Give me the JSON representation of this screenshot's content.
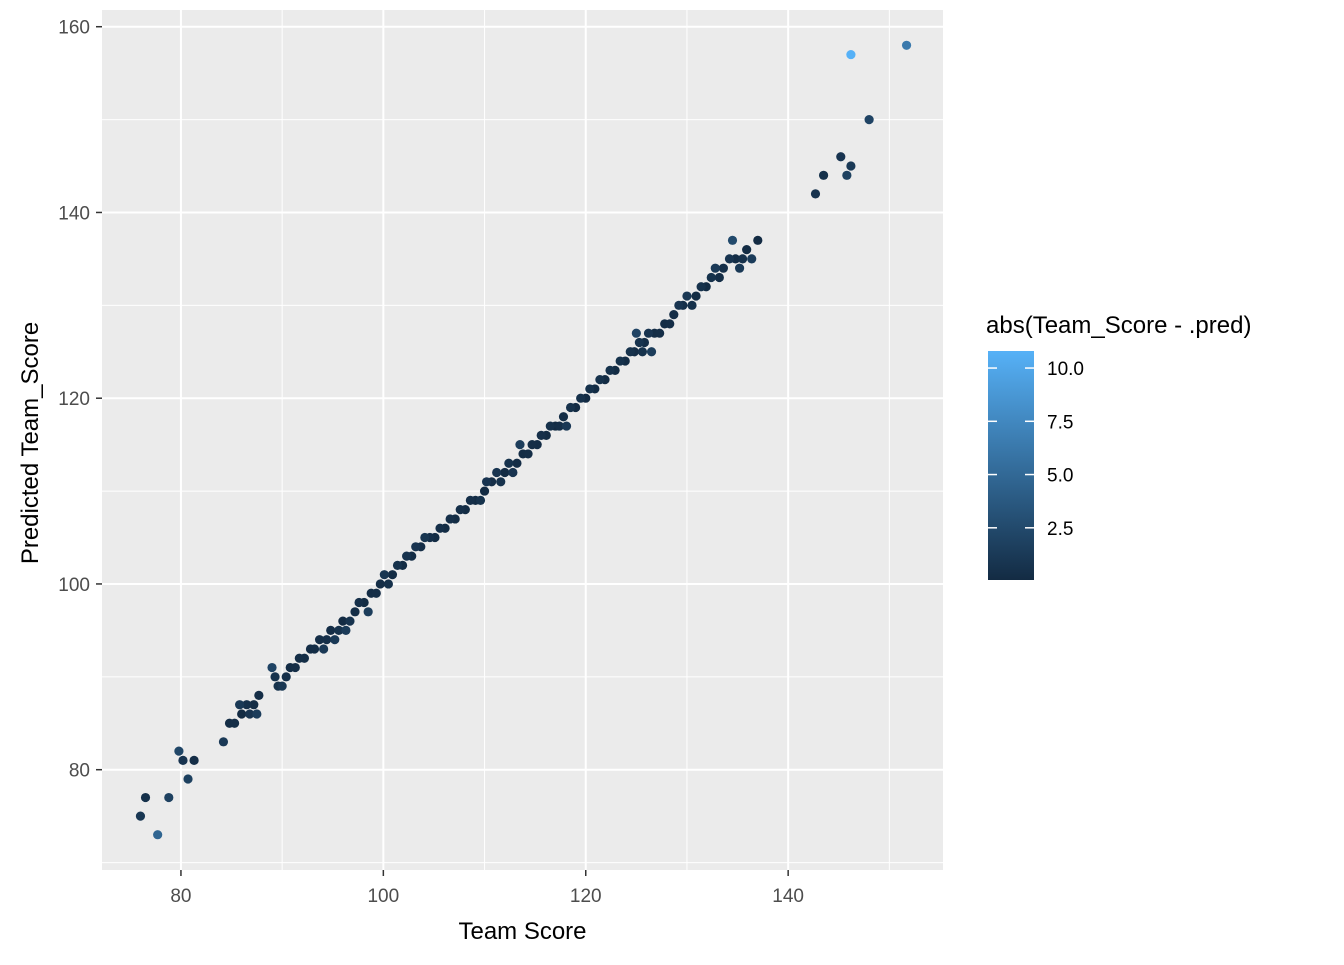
{
  "chart_data": {
    "type": "scatter",
    "title": "",
    "xlabel": "Team Score",
    "ylabel": "Predicted Team_Score",
    "xlim": [
      72.2,
      155.3
    ],
    "ylim": [
      69.2,
      161.8
    ],
    "x_ticks": [
      80,
      100,
      120,
      140
    ],
    "y_ticks": [
      80,
      100,
      120,
      140,
      160
    ],
    "x_tick_labels": [
      "80",
      "100",
      "120",
      "140"
    ],
    "y_tick_labels": [
      "80",
      "100",
      "120",
      "140",
      "160"
    ],
    "grid": true,
    "background": "#EBEBEB",
    "legend": {
      "title": "abs(Team_Score - .pred)",
      "placement": "right",
      "breaks": [
        10.0,
        7.5,
        5.0,
        2.5
      ],
      "break_labels": [
        "10.0",
        "7.5",
        "5.0",
        "2.5"
      ],
      "min": 0.05,
      "max": 10.8,
      "low_color": "#132B43",
      "high_color": "#56B1F7"
    },
    "series": [
      {
        "points": [
          {
            "x": 76.0,
            "y": 75,
            "err": 1.0
          },
          {
            "x": 76.5,
            "y": 77,
            "err": 0.5
          },
          {
            "x": 77.7,
            "y": 73,
            "err": 4.7
          },
          {
            "x": 78.8,
            "y": 77,
            "err": 1.8
          },
          {
            "x": 79.8,
            "y": 82,
            "err": 2.2
          },
          {
            "x": 80.2,
            "y": 81,
            "err": 0.8
          },
          {
            "x": 80.7,
            "y": 79,
            "err": 1.7
          },
          {
            "x": 81.3,
            "y": 81,
            "err": 0.3
          },
          {
            "x": 84.2,
            "y": 83,
            "err": 1.2
          },
          {
            "x": 84.8,
            "y": 85,
            "err": 0.2
          },
          {
            "x": 85.3,
            "y": 85,
            "err": 0.3
          },
          {
            "x": 85.8,
            "y": 87,
            "err": 1.2
          },
          {
            "x": 86.0,
            "y": 86,
            "err": 0.0
          },
          {
            "x": 86.5,
            "y": 87,
            "err": 0.5
          },
          {
            "x": 86.8,
            "y": 86,
            "err": 0.8
          },
          {
            "x": 87.2,
            "y": 87,
            "err": 0.2
          },
          {
            "x": 87.5,
            "y": 86,
            "err": 1.5
          },
          {
            "x": 87.7,
            "y": 88,
            "err": 0.3
          },
          {
            "x": 89.0,
            "y": 91,
            "err": 2.0
          },
          {
            "x": 89.3,
            "y": 90,
            "err": 0.7
          },
          {
            "x": 89.6,
            "y": 89,
            "err": 0.6
          },
          {
            "x": 90.0,
            "y": 89,
            "err": 1.0
          },
          {
            "x": 90.4,
            "y": 90,
            "err": 0.4
          },
          {
            "x": 90.8,
            "y": 91,
            "err": 0.2
          },
          {
            "x": 91.3,
            "y": 91,
            "err": 0.3
          },
          {
            "x": 91.7,
            "y": 92,
            "err": 0.3
          },
          {
            "x": 92.2,
            "y": 92,
            "err": 0.2
          },
          {
            "x": 92.8,
            "y": 93,
            "err": 0.2
          },
          {
            "x": 93.2,
            "y": 93,
            "err": 0.2
          },
          {
            "x": 93.7,
            "y": 94,
            "err": 0.3
          },
          {
            "x": 94.1,
            "y": 93,
            "err": 1.1
          },
          {
            "x": 94.4,
            "y": 94,
            "err": 0.4
          },
          {
            "x": 94.8,
            "y": 95,
            "err": 0.2
          },
          {
            "x": 95.2,
            "y": 94,
            "err": 1.2
          },
          {
            "x": 95.6,
            "y": 95,
            "err": 0.6
          },
          {
            "x": 96.0,
            "y": 96,
            "err": 0.0
          },
          {
            "x": 96.3,
            "y": 95,
            "err": 1.3
          },
          {
            "x": 96.7,
            "y": 96,
            "err": 0.7
          },
          {
            "x": 97.2,
            "y": 97,
            "err": 0.2
          },
          {
            "x": 97.6,
            "y": 98,
            "err": 0.4
          },
          {
            "x": 98.1,
            "y": 98,
            "err": 0.1
          },
          {
            "x": 98.5,
            "y": 97,
            "err": 1.5
          },
          {
            "x": 98.8,
            "y": 99,
            "err": 0.2
          },
          {
            "x": 99.3,
            "y": 99,
            "err": 0.3
          },
          {
            "x": 99.7,
            "y": 100,
            "err": 0.3
          },
          {
            "x": 100.1,
            "y": 101,
            "err": 0.9
          },
          {
            "x": 100.5,
            "y": 100,
            "err": 0.5
          },
          {
            "x": 100.9,
            "y": 101,
            "err": 0.1
          },
          {
            "x": 101.4,
            "y": 102,
            "err": 0.6
          },
          {
            "x": 101.9,
            "y": 102,
            "err": 0.1
          },
          {
            "x": 102.3,
            "y": 103,
            "err": 0.7
          },
          {
            "x": 102.8,
            "y": 103,
            "err": 0.2
          },
          {
            "x": 103.2,
            "y": 104,
            "err": 0.8
          },
          {
            "x": 103.7,
            "y": 104,
            "err": 0.3
          },
          {
            "x": 104.1,
            "y": 105,
            "err": 0.9
          },
          {
            "x": 104.6,
            "y": 105,
            "err": 0.4
          },
          {
            "x": 105.1,
            "y": 105,
            "err": 0.1
          },
          {
            "x": 105.6,
            "y": 106,
            "err": 0.4
          },
          {
            "x": 106.1,
            "y": 106,
            "err": 0.1
          },
          {
            "x": 106.6,
            "y": 107,
            "err": 0.4
          },
          {
            "x": 107.1,
            "y": 107,
            "err": 0.1
          },
          {
            "x": 107.6,
            "y": 108,
            "err": 0.4
          },
          {
            "x": 108.1,
            "y": 108,
            "err": 0.1
          },
          {
            "x": 108.6,
            "y": 109,
            "err": 0.4
          },
          {
            "x": 109.1,
            "y": 109,
            "err": 0.1
          },
          {
            "x": 109.6,
            "y": 109,
            "err": 0.6
          },
          {
            "x": 110.0,
            "y": 110,
            "err": 0.0
          },
          {
            "x": 110.2,
            "y": 111,
            "err": 0.8
          },
          {
            "x": 110.7,
            "y": 111,
            "err": 0.3
          },
          {
            "x": 111.2,
            "y": 112,
            "err": 0.8
          },
          {
            "x": 111.6,
            "y": 111,
            "err": 0.6
          },
          {
            "x": 112.0,
            "y": 112,
            "err": 0.0
          },
          {
            "x": 112.4,
            "y": 113,
            "err": 0.6
          },
          {
            "x": 112.8,
            "y": 112,
            "err": 0.8
          },
          {
            "x": 113.2,
            "y": 113,
            "err": 0.2
          },
          {
            "x": 113.5,
            "y": 115,
            "err": 1.5
          },
          {
            "x": 113.8,
            "y": 114,
            "err": 0.2
          },
          {
            "x": 114.3,
            "y": 114,
            "err": 0.3
          },
          {
            "x": 114.7,
            "y": 115,
            "err": 0.3
          },
          {
            "x": 115.2,
            "y": 115,
            "err": 0.2
          },
          {
            "x": 115.6,
            "y": 116,
            "err": 0.4
          },
          {
            "x": 116.1,
            "y": 116,
            "err": 0.1
          },
          {
            "x": 116.5,
            "y": 117,
            "err": 0.5
          },
          {
            "x": 117.0,
            "y": 117,
            "err": 0.0
          },
          {
            "x": 117.4,
            "y": 117,
            "err": 0.4
          },
          {
            "x": 117.8,
            "y": 118,
            "err": 0.2
          },
          {
            "x": 118.1,
            "y": 117,
            "err": 1.1
          },
          {
            "x": 118.5,
            "y": 119,
            "err": 0.5
          },
          {
            "x": 119.0,
            "y": 119,
            "err": 0.0
          },
          {
            "x": 119.5,
            "y": 120,
            "err": 0.5
          },
          {
            "x": 120.0,
            "y": 120,
            "err": 0.0
          },
          {
            "x": 120.4,
            "y": 121,
            "err": 0.6
          },
          {
            "x": 120.9,
            "y": 121,
            "err": 0.1
          },
          {
            "x": 121.4,
            "y": 122,
            "err": 0.6
          },
          {
            "x": 121.9,
            "y": 122,
            "err": 0.1
          },
          {
            "x": 122.4,
            "y": 123,
            "err": 0.6
          },
          {
            "x": 122.9,
            "y": 123,
            "err": 0.1
          },
          {
            "x": 123.4,
            "y": 124,
            "err": 0.6
          },
          {
            "x": 123.9,
            "y": 124,
            "err": 0.1
          },
          {
            "x": 124.4,
            "y": 125,
            "err": 0.6
          },
          {
            "x": 124.8,
            "y": 125,
            "err": 0.2
          },
          {
            "x": 125.0,
            "y": 127,
            "err": 2.0
          },
          {
            "x": 125.3,
            "y": 126,
            "err": 0.7
          },
          {
            "x": 125.6,
            "y": 125,
            "err": 0.6
          },
          {
            "x": 125.8,
            "y": 126,
            "err": 0.2
          },
          {
            "x": 126.2,
            "y": 127,
            "err": 0.8
          },
          {
            "x": 126.5,
            "y": 125,
            "err": 1.5
          },
          {
            "x": 126.8,
            "y": 127,
            "err": 0.2
          },
          {
            "x": 127.3,
            "y": 127,
            "err": 0.3
          },
          {
            "x": 127.8,
            "y": 128,
            "err": 0.2
          },
          {
            "x": 128.3,
            "y": 128,
            "err": 0.3
          },
          {
            "x": 128.7,
            "y": 129,
            "err": 0.3
          },
          {
            "x": 129.2,
            "y": 130,
            "err": 0.8
          },
          {
            "x": 129.6,
            "y": 130,
            "err": 0.4
          },
          {
            "x": 130.0,
            "y": 131,
            "err": 1.0
          },
          {
            "x": 130.5,
            "y": 130,
            "err": 0.5
          },
          {
            "x": 130.9,
            "y": 131,
            "err": 0.1
          },
          {
            "x": 131.4,
            "y": 132,
            "err": 0.6
          },
          {
            "x": 131.9,
            "y": 132,
            "err": 0.1
          },
          {
            "x": 132.4,
            "y": 133,
            "err": 0.6
          },
          {
            "x": 132.8,
            "y": 134,
            "err": 1.2
          },
          {
            "x": 133.2,
            "y": 133,
            "err": 0.2
          },
          {
            "x": 133.6,
            "y": 134,
            "err": 0.4
          },
          {
            "x": 134.2,
            "y": 135,
            "err": 0.8
          },
          {
            "x": 134.5,
            "y": 137,
            "err": 2.5
          },
          {
            "x": 134.8,
            "y": 135,
            "err": 0.2
          },
          {
            "x": 135.2,
            "y": 134,
            "err": 1.2
          },
          {
            "x": 135.5,
            "y": 135,
            "err": 0.5
          },
          {
            "x": 135.9,
            "y": 136,
            "err": 0.1
          },
          {
            "x": 136.4,
            "y": 135,
            "err": 1.4
          },
          {
            "x": 137.0,
            "y": 137,
            "err": 0.0
          },
          {
            "x": 142.7,
            "y": 142,
            "err": 0.7
          },
          {
            "x": 143.5,
            "y": 144,
            "err": 0.5
          },
          {
            "x": 145.2,
            "y": 146,
            "err": 0.8
          },
          {
            "x": 145.8,
            "y": 144,
            "err": 1.8
          },
          {
            "x": 146.2,
            "y": 145,
            "err": 1.2
          },
          {
            "x": 146.2,
            "y": 157,
            "err": 10.8
          },
          {
            "x": 148.0,
            "y": 150,
            "err": 2.0
          },
          {
            "x": 151.7,
            "y": 158,
            "err": 6.3
          }
        ]
      }
    ]
  }
}
